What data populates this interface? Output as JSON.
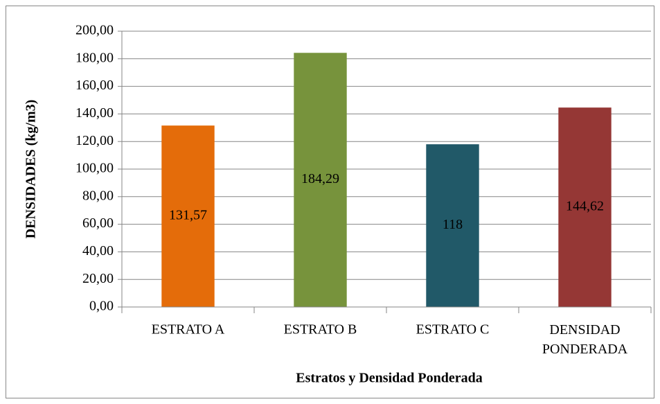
{
  "chart_data": {
    "type": "bar",
    "categories": [
      "ESTRATO A",
      "ESTRATO B",
      "ESTRATO C",
      "DENSIDAD PONDERADA"
    ],
    "values": [
      131.57,
      184.29,
      118,
      144.62
    ],
    "value_labels": [
      "131,57",
      "184,29",
      "118",
      "144,62"
    ],
    "colors": [
      "#e46c0a",
      "#77933c",
      "#215968",
      "#953735"
    ],
    "xlabel": "Estratos y Densidad Ponderada",
    "ylabel": "DENSIDADES (kg/m3)",
    "ylim": [
      0,
      200
    ],
    "yticks": [
      {
        "value": 0,
        "label": "0,00"
      },
      {
        "value": 20,
        "label": "20,00"
      },
      {
        "value": 40,
        "label": "40,00"
      },
      {
        "value": 60,
        "label": "60,00"
      },
      {
        "value": 80,
        "label": "80,00"
      },
      {
        "value": 100,
        "label": "100,00"
      },
      {
        "value": 120,
        "label": "120,00"
      },
      {
        "value": 140,
        "label": "140,00"
      },
      {
        "value": 160,
        "label": "160,00"
      },
      {
        "value": 180,
        "label": "180,00"
      },
      {
        "value": 200,
        "label": "200,00"
      }
    ],
    "grid": true
  }
}
